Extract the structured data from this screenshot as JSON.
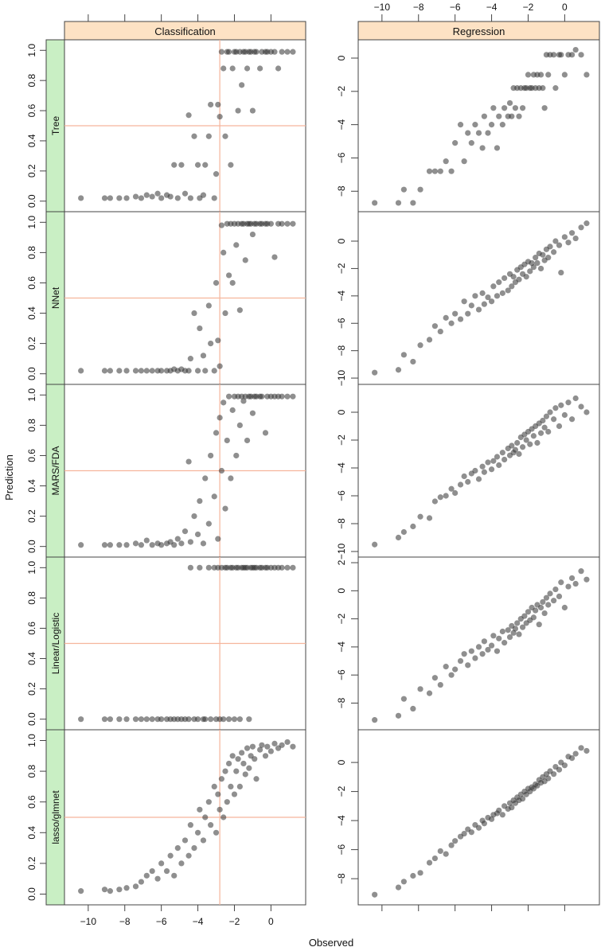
{
  "chart_data": {
    "type": "scatter",
    "xlabel": "Observed",
    "ylabel": "Prediction",
    "columns": [
      "Classification",
      "Regression"
    ],
    "rows": [
      "Tree",
      "NNet",
      "MARS/FDA",
      "Linear/Logistic",
      "lasso/glmnet"
    ],
    "xlim": [
      -11.3,
      1.9
    ],
    "x_ticks": [
      -10,
      -8,
      -6,
      -4,
      -2,
      0
    ],
    "classification_ylim": [
      -0.07,
      1.07
    ],
    "classification_y_ticks": [
      "0.0",
      "0.2",
      "0.4",
      "0.6",
      "0.8",
      "1.0"
    ],
    "classification_reference_lines": {
      "x": -2.8,
      "y": 0.5
    },
    "regression_ylims": [
      [
        -9.23,
        1.1
      ],
      [
        -10.46,
        2.15
      ],
      [
        -10.4,
        2.0
      ],
      [
        -9.9,
        2.4
      ],
      [
        -9.8,
        2.25
      ]
    ],
    "regression_y_ticks": [
      [
        -8,
        -6,
        -4,
        -2,
        0
      ],
      [
        -10,
        -8,
        -6,
        -4,
        -2,
        0
      ],
      [
        -10,
        -8,
        -6,
        -4,
        -2,
        0
      ],
      [
        -8,
        -6,
        -4,
        -2,
        0,
        2
      ],
      [
        -8,
        -6,
        -4,
        -2,
        0
      ]
    ],
    "grid": false,
    "colors": {
      "points": "#333333",
      "reference_line": "#f5b59c",
      "column_strip": "#fde2c4",
      "row_strip": "#c9efc4"
    },
    "observed": [
      -10.4,
      -9.1,
      -8.8,
      -8.3,
      -7.9,
      -7.4,
      -7.1,
      -6.8,
      -6.5,
      -6.2,
      -6.0,
      -5.7,
      -5.5,
      -5.3,
      -5.1,
      -4.9,
      -4.7,
      -4.5,
      -4.4,
      -4.2,
      -4.0,
      -3.9,
      -3.7,
      -3.6,
      -3.4,
      -3.3,
      -3.1,
      -3.0,
      -2.9,
      -2.8,
      -2.7,
      -2.6,
      -2.5,
      -2.4,
      -2.3,
      -2.2,
      -2.1,
      -2.0,
      -1.9,
      -1.8,
      -1.7,
      -1.6,
      -1.5,
      -1.4,
      -1.3,
      -1.2,
      -1.1,
      -1.0,
      -0.9,
      -0.8,
      -0.6,
      -0.5,
      -0.3,
      -0.2,
      0.0,
      0.2,
      0.4,
      0.6,
      0.9,
      1.2
    ],
    "series": [
      {
        "model": "Tree",
        "classification": [
          0.02,
          0.02,
          0.02,
          0.02,
          0.02,
          0.03,
          0.02,
          0.04,
          0.03,
          0.05,
          0.02,
          0.04,
          0.03,
          0.24,
          0.02,
          0.24,
          0.05,
          0.57,
          0.02,
          0.43,
          0.24,
          0.02,
          0.04,
          0.24,
          0.43,
          0.64,
          0.02,
          0.18,
          0.64,
          0.56,
          0.99,
          0.88,
          0.43,
          0.99,
          0.99,
          0.24,
          0.88,
          0.99,
          0.99,
          0.6,
          0.99,
          0.77,
          0.99,
          0.99,
          0.88,
          0.99,
          0.99,
          0.6,
          0.99,
          0.99,
          0.88,
          0.99,
          0.99,
          0.99,
          0.99,
          0.99,
          0.88,
          0.99,
          0.99,
          0.99
        ],
        "regression": [
          -8.7,
          -8.7,
          -7.9,
          -8.7,
          -7.9,
          -6.8,
          -6.8,
          -6.8,
          -6.2,
          -6.8,
          -5.1,
          -4.0,
          -6.2,
          -4.5,
          -5.1,
          -4.0,
          -4.5,
          -5.4,
          -3.5,
          -4.5,
          -4.0,
          -3.0,
          -5.4,
          -3.5,
          -4.0,
          -3.0,
          -3.5,
          -2.7,
          -3.5,
          -1.8,
          -3.0,
          -1.8,
          -3.5,
          -1.8,
          -3.0,
          -1.8,
          -1.8,
          -1.0,
          -1.8,
          -1.8,
          -1.0,
          -1.8,
          -1.0,
          -1.8,
          -1.0,
          -1.8,
          -3.0,
          0.2,
          -1.0,
          0.2,
          0.2,
          -1.8,
          0.2,
          0.2,
          -1.0,
          0.2,
          0.2,
          0.5,
          0.2,
          -1.0
        ]
      },
      {
        "model": "NNet",
        "classification": [
          0.02,
          0.02,
          0.02,
          0.02,
          0.02,
          0.02,
          0.02,
          0.02,
          0.02,
          0.02,
          0.02,
          0.02,
          0.02,
          0.03,
          0.02,
          0.03,
          0.02,
          0.02,
          0.1,
          0.4,
          0.02,
          0.3,
          0.12,
          0.02,
          0.45,
          0.2,
          0.02,
          0.6,
          0.22,
          0.05,
          0.98,
          0.8,
          0.4,
          0.99,
          0.65,
          0.99,
          0.6,
          0.99,
          0.85,
          0.99,
          0.42,
          0.99,
          0.99,
          0.75,
          0.99,
          0.99,
          0.99,
          0.92,
          0.99,
          0.99,
          0.99,
          0.99,
          0.99,
          0.99,
          0.99,
          0.77,
          0.99,
          0.99,
          0.99,
          0.99
        ],
        "regression": [
          -9.6,
          -9.4,
          -8.3,
          -8.8,
          -7.6,
          -7.2,
          -6.2,
          -6.6,
          -5.6,
          -6.0,
          -5.3,
          -5.7,
          -4.4,
          -5.3,
          -4.7,
          -4.0,
          -5.0,
          -3.8,
          -4.6,
          -4.1,
          -4.4,
          -3.3,
          -4.0,
          -3.0,
          -3.8,
          -2.7,
          -3.6,
          -2.4,
          -3.3,
          -2.6,
          -3.0,
          -2.1,
          -2.8,
          -1.9,
          -2.4,
          -1.7,
          -2.6,
          -1.5,
          -2.2,
          -1.6,
          -1.9,
          -1.2,
          -1.6,
          -0.9,
          -2.0,
          -1.0,
          -1.4,
          -0.6,
          -1.2,
          -0.4,
          -0.8,
          0.0,
          -0.3,
          -2.3,
          0.3,
          -0.1,
          0.6,
          0.2,
          1.0,
          1.3
        ]
      },
      {
        "model": "MARS/FDA",
        "classification": [
          0.01,
          0.01,
          0.01,
          0.01,
          0.01,
          0.02,
          0.01,
          0.04,
          0.01,
          0.02,
          0.01,
          0.02,
          0.03,
          0.01,
          0.05,
          0.02,
          0.1,
          0.56,
          0.03,
          0.2,
          0.08,
          0.3,
          0.02,
          0.45,
          0.15,
          0.6,
          0.33,
          0.75,
          0.05,
          0.85,
          0.5,
          0.95,
          0.25,
          0.7,
          0.99,
          0.45,
          0.9,
          0.99,
          0.6,
          0.99,
          0.8,
          0.99,
          0.96,
          0.99,
          0.7,
          0.99,
          0.99,
          0.88,
          0.99,
          0.99,
          0.99,
          0.99,
          0.75,
          0.99,
          0.99,
          0.99,
          0.99,
          0.99,
          0.99,
          0.99
        ],
        "regression": [
          -9.5,
          -9.0,
          -8.6,
          -8.2,
          -7.5,
          -7.6,
          -6.4,
          -6.1,
          -6.0,
          -5.5,
          -5.8,
          -5.2,
          -4.6,
          -5.0,
          -4.4,
          -4.2,
          -4.8,
          -3.9,
          -4.3,
          -3.6,
          -4.1,
          -3.5,
          -3.2,
          -3.8,
          -2.9,
          -3.4,
          -2.6,
          -3.1,
          -2.4,
          -2.9,
          -2.7,
          -2.2,
          -3.0,
          -1.8,
          -2.5,
          -1.6,
          -2.0,
          -1.4,
          -2.3,
          -1.2,
          -1.7,
          -1.0,
          -2.2,
          -0.8,
          -1.5,
          -0.6,
          -1.1,
          -0.3,
          -1.4,
          0.0,
          -0.5,
          0.3,
          -1.0,
          0.5,
          -0.2,
          0.7,
          -0.5,
          1.0,
          0.4,
          0.0
        ]
      },
      {
        "model": "Linear/Logistic",
        "classification": [
          0,
          0,
          0,
          0,
          0,
          0,
          0,
          0,
          0,
          0,
          0,
          0,
          0,
          0,
          0,
          0,
          0,
          0,
          1,
          0,
          0,
          1,
          0,
          0,
          1,
          0,
          1,
          0,
          1,
          0,
          1,
          0,
          1,
          1,
          0,
          1,
          1,
          0,
          1,
          1,
          0,
          1,
          1,
          1,
          1,
          0,
          1,
          1,
          1,
          1,
          1,
          1,
          1,
          1,
          1,
          1,
          1,
          1,
          1,
          1
        ],
        "regression": [
          -9.2,
          -8.9,
          -7.7,
          -8.4,
          -7.0,
          -7.3,
          -6.2,
          -6.7,
          -5.4,
          -6.0,
          -5.6,
          -5.0,
          -4.5,
          -5.3,
          -4.3,
          -4.8,
          -4.0,
          -4.5,
          -3.6,
          -4.2,
          -3.9,
          -3.2,
          -4.3,
          -3.4,
          -2.9,
          -3.7,
          -2.8,
          -3.3,
          -2.5,
          -3.0,
          -2.7,
          -2.3,
          -3.1,
          -2.0,
          -2.6,
          -1.8,
          -2.3,
          -1.5,
          -2.1,
          -1.2,
          -1.9,
          -1.4,
          -1.0,
          -2.4,
          -1.2,
          -0.8,
          -1.6,
          -0.5,
          -1.0,
          -0.2,
          -0.7,
          0.1,
          -0.4,
          0.6,
          -1.2,
          0.3,
          0.9,
          0.5,
          1.4,
          0.8
        ]
      },
      {
        "model": "lasso/glmnet",
        "classification": [
          0.02,
          0.03,
          0.02,
          0.03,
          0.04,
          0.05,
          0.08,
          0.12,
          0.15,
          0.1,
          0.2,
          0.15,
          0.25,
          0.12,
          0.3,
          0.2,
          0.35,
          0.25,
          0.45,
          0.3,
          0.4,
          0.55,
          0.35,
          0.5,
          0.6,
          0.45,
          0.7,
          0.4,
          0.65,
          0.55,
          0.75,
          0.5,
          0.8,
          0.6,
          0.85,
          0.7,
          0.9,
          0.65,
          0.8,
          0.88,
          0.7,
          0.92,
          0.85,
          0.78,
          0.95,
          0.82,
          0.9,
          0.96,
          0.88,
          0.75,
          0.94,
          0.97,
          0.9,
          0.96,
          0.93,
          0.98,
          0.95,
          0.97,
          0.99,
          0.96
        ],
        "regression": [
          -9.1,
          -8.6,
          -8.2,
          -7.8,
          -7.6,
          -6.9,
          -6.6,
          -6.1,
          -6.3,
          -5.7,
          -5.4,
          -5.1,
          -4.9,
          -4.6,
          -4.8,
          -4.3,
          -4.5,
          -4.0,
          -4.2,
          -3.8,
          -3.9,
          -3.6,
          -3.5,
          -3.3,
          -3.6,
          -3.0,
          -3.2,
          -2.8,
          -3.1,
          -2.6,
          -2.8,
          -2.4,
          -2.6,
          -2.2,
          -2.5,
          -2.0,
          -2.2,
          -1.8,
          -2.0,
          -1.7,
          -1.8,
          -1.5,
          -1.6,
          -1.2,
          -1.4,
          -1.0,
          -1.3,
          -0.8,
          -1.1,
          -0.6,
          -0.8,
          -0.3,
          -0.5,
          0.0,
          -0.2,
          0.4,
          0.3,
          0.6,
          1.0,
          0.8
        ]
      }
    ]
  }
}
